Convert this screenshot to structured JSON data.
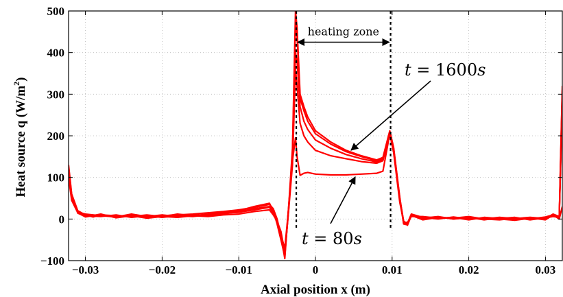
{
  "chart_data": {
    "type": "line",
    "xlabel": "Axial position x (m)",
    "ylabel": "Heat source q (W/m²)",
    "ylabel_main": "Heat source q (W/m",
    "ylabel_sup": "2",
    "ylabel_tail": ")",
    "xlim": [
      -0.0322,
      0.0322
    ],
    "ylim": [
      -100,
      500
    ],
    "grid": true,
    "x_ticks": [
      -0.03,
      -0.02,
      -0.01,
      0,
      0.01,
      0.02,
      0.03
    ],
    "x_tick_labels": [
      "−0.03",
      "−0.02",
      "−0.01",
      "0",
      "0.01",
      "0.02",
      "0.03"
    ],
    "y_ticks": [
      -100,
      0,
      100,
      200,
      300,
      400,
      500
    ],
    "y_tick_labels": [
      "−100",
      "0",
      "100",
      "200",
      "300",
      "400",
      "500"
    ],
    "line_color": "#ff0000",
    "heating_zone": {
      "x_start": -0.0025,
      "x_end": 0.0098,
      "label": "heating zone"
    },
    "annotations": [
      {
        "prefix": "t = ",
        "value": "1600",
        "unit": "s"
      },
      {
        "prefix": "t = ",
        "value": "80",
        "unit": "s"
      }
    ],
    "series": [
      {
        "values": [
          [
            -0.0322,
            130
          ],
          [
            -0.0318,
            60
          ],
          [
            -0.031,
            20
          ],
          [
            -0.03,
            10
          ],
          [
            -0.029,
            5
          ],
          [
            -0.028,
            10
          ],
          [
            -0.026,
            6
          ],
          [
            -0.024,
            10
          ],
          [
            -0.022,
            5
          ],
          [
            -0.02,
            8
          ],
          [
            -0.018,
            10
          ],
          [
            -0.016,
            12
          ],
          [
            -0.014,
            15
          ],
          [
            -0.012,
            18
          ],
          [
            -0.01,
            22
          ],
          [
            -0.008,
            28
          ],
          [
            -0.006,
            35
          ],
          [
            -0.0055,
            25
          ],
          [
            -0.005,
            0
          ],
          [
            -0.0045,
            -40
          ],
          [
            -0.004,
            -95
          ],
          [
            -0.0035,
            30
          ],
          [
            -0.003,
            140
          ],
          [
            -0.0026,
            195
          ],
          [
            -0.0024,
            150
          ],
          [
            -0.002,
            105
          ],
          [
            -0.0015,
            110
          ],
          [
            -0.001,
            112
          ],
          [
            0,
            108
          ],
          [
            0.002,
            106
          ],
          [
            0.004,
            106
          ],
          [
            0.006,
            108
          ],
          [
            0.008,
            110
          ],
          [
            0.0088,
            115
          ],
          [
            0.0095,
            185
          ],
          [
            0.0097,
            205
          ],
          [
            0.0102,
            160
          ],
          [
            0.011,
            40
          ],
          [
            0.0115,
            -5
          ],
          [
            0.012,
            -15
          ],
          [
            0.0125,
            8
          ],
          [
            0.014,
            0
          ],
          [
            0.016,
            5
          ],
          [
            0.018,
            0
          ],
          [
            0.02,
            3
          ],
          [
            0.022,
            0
          ],
          [
            0.024,
            -2
          ],
          [
            0.026,
            2
          ],
          [
            0.028,
            0
          ],
          [
            0.03,
            5
          ],
          [
            0.031,
            10
          ],
          [
            0.0318,
            0
          ],
          [
            0.0322,
            30
          ]
        ]
      },
      {
        "values": [
          [
            -0.0322,
            100
          ],
          [
            -0.0318,
            45
          ],
          [
            -0.031,
            15
          ],
          [
            -0.03,
            5
          ],
          [
            -0.028,
            12
          ],
          [
            -0.026,
            3
          ],
          [
            -0.024,
            8
          ],
          [
            -0.022,
            2
          ],
          [
            -0.02,
            6
          ],
          [
            -0.018,
            4
          ],
          [
            -0.016,
            8
          ],
          [
            -0.014,
            6
          ],
          [
            -0.012,
            10
          ],
          [
            -0.01,
            12
          ],
          [
            -0.008,
            18
          ],
          [
            -0.006,
            22
          ],
          [
            -0.0055,
            10
          ],
          [
            -0.005,
            -5
          ],
          [
            -0.0045,
            -30
          ],
          [
            -0.004,
            -80
          ],
          [
            -0.0035,
            20
          ],
          [
            -0.003,
            130
          ],
          [
            -0.0026,
            360
          ],
          [
            -0.0024,
            320
          ],
          [
            -0.002,
            230
          ],
          [
            -0.0015,
            200
          ],
          [
            -0.001,
            185
          ],
          [
            0,
            165
          ],
          [
            0.002,
            152
          ],
          [
            0.004,
            145
          ],
          [
            0.006,
            138
          ],
          [
            0.008,
            134
          ],
          [
            0.0088,
            140
          ],
          [
            0.0095,
            190
          ],
          [
            0.0097,
            210
          ],
          [
            0.0102,
            165
          ],
          [
            0.011,
            45
          ],
          [
            0.0115,
            -10
          ],
          [
            0.012,
            -10
          ],
          [
            0.0125,
            12
          ],
          [
            0.014,
            4
          ],
          [
            0.016,
            0
          ],
          [
            0.018,
            5
          ],
          [
            0.02,
            0
          ],
          [
            0.022,
            2
          ],
          [
            0.024,
            0
          ],
          [
            0.026,
            -3
          ],
          [
            0.028,
            2
          ],
          [
            0.03,
            0
          ],
          [
            0.031,
            8
          ],
          [
            0.0318,
            5
          ],
          [
            0.0322,
            280
          ]
        ]
      },
      {
        "values": [
          [
            -0.0322,
            110
          ],
          [
            -0.0318,
            50
          ],
          [
            -0.031,
            18
          ],
          [
            -0.03,
            8
          ],
          [
            -0.028,
            6
          ],
          [
            -0.026,
            10
          ],
          [
            -0.024,
            4
          ],
          [
            -0.022,
            8
          ],
          [
            -0.02,
            4
          ],
          [
            -0.018,
            8
          ],
          [
            -0.016,
            6
          ],
          [
            -0.014,
            10
          ],
          [
            -0.012,
            14
          ],
          [
            -0.01,
            16
          ],
          [
            -0.008,
            22
          ],
          [
            -0.006,
            28
          ],
          [
            -0.0055,
            15
          ],
          [
            -0.005,
            -8
          ],
          [
            -0.0045,
            -40
          ],
          [
            -0.004,
            -70
          ],
          [
            -0.0035,
            25
          ],
          [
            -0.003,
            150
          ],
          [
            -0.0026,
            400
          ],
          [
            -0.0024,
            380
          ],
          [
            -0.002,
            270
          ],
          [
            -0.0015,
            235
          ],
          [
            -0.001,
            215
          ],
          [
            0,
            190
          ],
          [
            0.002,
            170
          ],
          [
            0.004,
            155
          ],
          [
            0.006,
            145
          ],
          [
            0.008,
            137
          ],
          [
            0.0088,
            142
          ],
          [
            0.0095,
            192
          ],
          [
            0.0097,
            210
          ],
          [
            0.0102,
            168
          ],
          [
            0.011,
            50
          ],
          [
            0.0115,
            -5
          ],
          [
            0.012,
            -12
          ],
          [
            0.0125,
            10
          ],
          [
            0.014,
            2
          ],
          [
            0.016,
            6
          ],
          [
            0.018,
            0
          ],
          [
            0.02,
            4
          ],
          [
            0.022,
            -2
          ],
          [
            0.024,
            3
          ],
          [
            0.026,
            0
          ],
          [
            0.028,
            3
          ],
          [
            0.03,
            -2
          ],
          [
            0.031,
            10
          ],
          [
            0.0318,
            2
          ],
          [
            0.0322,
            300
          ]
        ]
      },
      {
        "values": [
          [
            -0.0322,
            120
          ],
          [
            -0.0318,
            55
          ],
          [
            -0.031,
            16
          ],
          [
            -0.03,
            12
          ],
          [
            -0.028,
            8
          ],
          [
            -0.026,
            5
          ],
          [
            -0.024,
            12
          ],
          [
            -0.022,
            6
          ],
          [
            -0.02,
            10
          ],
          [
            -0.018,
            6
          ],
          [
            -0.016,
            10
          ],
          [
            -0.014,
            8
          ],
          [
            -0.012,
            12
          ],
          [
            -0.01,
            18
          ],
          [
            -0.008,
            25
          ],
          [
            -0.006,
            30
          ],
          [
            -0.0055,
            18
          ],
          [
            -0.005,
            -10
          ],
          [
            -0.0045,
            -45
          ],
          [
            -0.004,
            -85
          ],
          [
            -0.0035,
            22
          ],
          [
            -0.003,
            160
          ],
          [
            -0.0026,
            470
          ],
          [
            -0.0024,
            440
          ],
          [
            -0.002,
            290
          ],
          [
            -0.0015,
            260
          ],
          [
            -0.001,
            235
          ],
          [
            0,
            205
          ],
          [
            0.002,
            180
          ],
          [
            0.004,
            162
          ],
          [
            0.006,
            150
          ],
          [
            0.008,
            140
          ],
          [
            0.0088,
            145
          ],
          [
            0.0095,
            195
          ],
          [
            0.0097,
            208
          ],
          [
            0.0102,
            170
          ],
          [
            0.011,
            48
          ],
          [
            0.0115,
            -8
          ],
          [
            0.012,
            -8
          ],
          [
            0.0125,
            6
          ],
          [
            0.014,
            6
          ],
          [
            0.016,
            2
          ],
          [
            0.018,
            4
          ],
          [
            0.02,
            -2
          ],
          [
            0.022,
            4
          ],
          [
            0.024,
            1
          ],
          [
            0.026,
            4
          ],
          [
            0.028,
            -2
          ],
          [
            0.03,
            3
          ],
          [
            0.031,
            6
          ],
          [
            0.0318,
            4
          ],
          [
            0.0322,
            310
          ]
        ]
      },
      {
        "values": [
          [
            -0.0322,
            125
          ],
          [
            -0.0318,
            58
          ],
          [
            -0.031,
            14
          ],
          [
            -0.03,
            6
          ],
          [
            -0.028,
            10
          ],
          [
            -0.026,
            8
          ],
          [
            -0.024,
            6
          ],
          [
            -0.022,
            10
          ],
          [
            -0.02,
            6
          ],
          [
            -0.018,
            12
          ],
          [
            -0.016,
            8
          ],
          [
            -0.014,
            12
          ],
          [
            -0.012,
            16
          ],
          [
            -0.01,
            20
          ],
          [
            -0.008,
            30
          ],
          [
            -0.006,
            38
          ],
          [
            -0.0055,
            20
          ],
          [
            -0.005,
            -12
          ],
          [
            -0.0045,
            -50
          ],
          [
            -0.004,
            -90
          ],
          [
            -0.0035,
            28
          ],
          [
            -0.003,
            170
          ],
          [
            -0.0026,
            500
          ],
          [
            -0.0024,
            460
          ],
          [
            -0.002,
            300
          ],
          [
            -0.0015,
            270
          ],
          [
            -0.001,
            245
          ],
          [
            0,
            212
          ],
          [
            0.002,
            185
          ],
          [
            0.004,
            165
          ],
          [
            0.006,
            152
          ],
          [
            0.008,
            142
          ],
          [
            0.0088,
            148
          ],
          [
            0.0095,
            198
          ],
          [
            0.0097,
            212
          ],
          [
            0.0102,
            172
          ],
          [
            0.011,
            52
          ],
          [
            0.0115,
            -12
          ],
          [
            0.012,
            -14
          ],
          [
            0.0125,
            9
          ],
          [
            0.014,
            -2
          ],
          [
            0.016,
            4
          ],
          [
            0.018,
            2
          ],
          [
            0.02,
            6
          ],
          [
            0.022,
            0
          ],
          [
            0.024,
            4
          ],
          [
            0.026,
            1
          ],
          [
            0.028,
            4
          ],
          [
            0.03,
            1
          ],
          [
            0.031,
            12
          ],
          [
            0.0318,
            6
          ],
          [
            0.0322,
            320
          ]
        ]
      }
    ]
  }
}
